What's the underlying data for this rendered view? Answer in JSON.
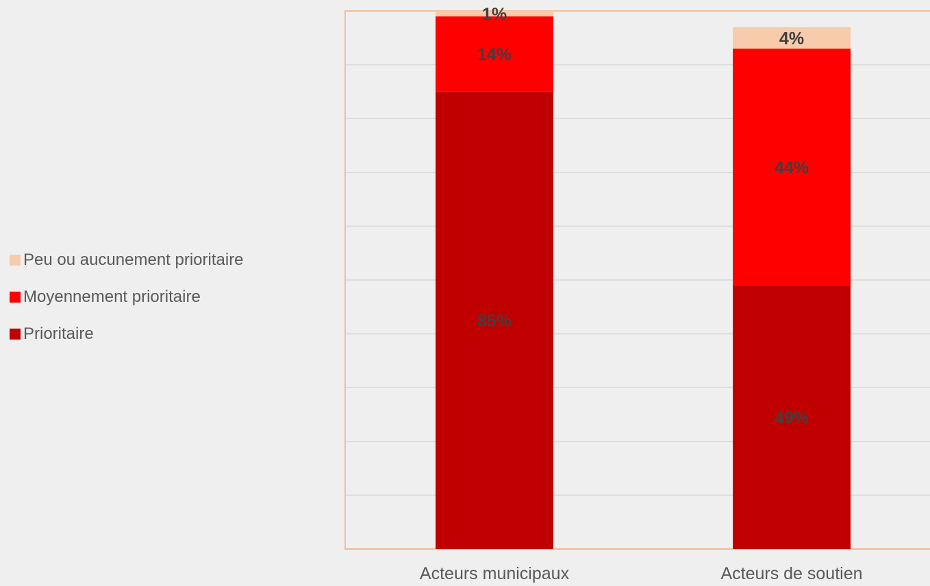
{
  "chart_data": {
    "type": "bar",
    "stacked": true,
    "categories": [
      "Acteurs municipaux",
      "Acteurs de soutien"
    ],
    "series": [
      {
        "name": "Prioritaire",
        "values": [
          85,
          49
        ],
        "labels": [
          "85%",
          "49%"
        ],
        "color": "#c00000"
      },
      {
        "name": "Moyennement prioritaire",
        "values": [
          14,
          44
        ],
        "labels": [
          "14%",
          "44%"
        ],
        "color": "#ff0000"
      },
      {
        "name": "Peu ou aucunement prioritaire",
        "values": [
          1,
          4
        ],
        "labels": [
          "1%",
          "4%"
        ],
        "color": "#f8cbad"
      }
    ],
    "legend_order": [
      "Peu ou aucunement prioritaire",
      "Moyennement prioritaire",
      "Prioritaire"
    ],
    "legend_position": "left",
    "ylim": [
      0,
      100
    ],
    "grid": true,
    "title": "",
    "xlabel": "",
    "ylabel": ""
  }
}
